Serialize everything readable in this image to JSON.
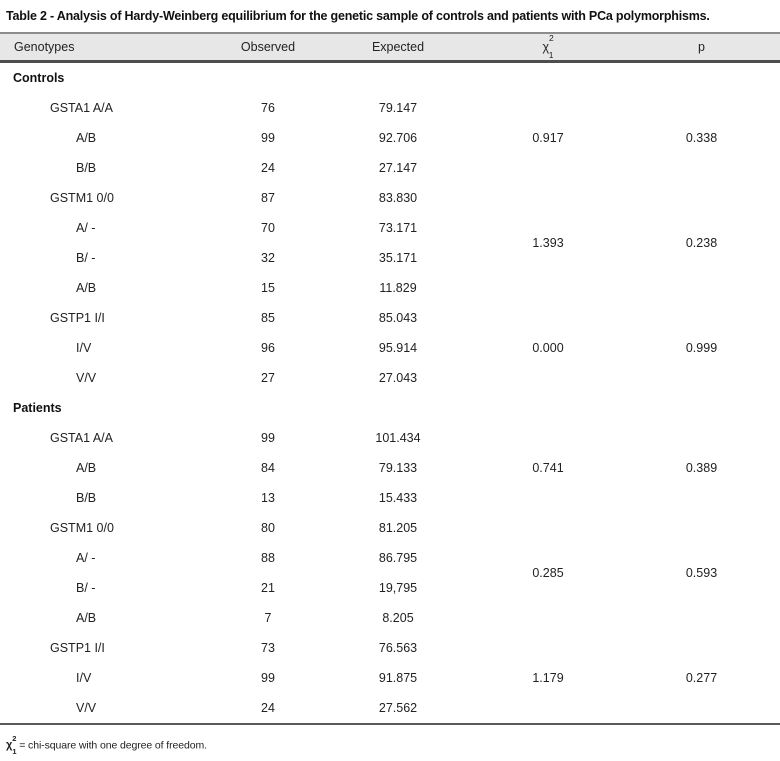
{
  "title": "Table 2 - Analysis of Hardy-Weinberg equilibrium for the genetic sample of controls and patients with PCa polymorphisms.",
  "columns": {
    "genotypes": "Genotypes",
    "observed": "Observed",
    "expected": "Expected",
    "chi_base": "χ",
    "chi_sup": "2",
    "chi_sub": "1",
    "p": "p"
  },
  "colors": {
    "header_bg": "#e7e7e7",
    "rule_top": "#8c8c8c",
    "rule_header_bottom": "#4d4d4d",
    "rule_table_bottom": "#5a5a5a",
    "text": "#222222"
  },
  "sections": [
    {
      "label": "Controls",
      "groups": [
        {
          "chi": "0.917",
          "p": "0.338",
          "rows": [
            {
              "genotype": "GSTA1 A/A",
              "indent": 1,
              "observed": "76",
              "expected": "79.147"
            },
            {
              "genotype": "A/B",
              "indent": 2,
              "observed": "99",
              "expected": "92.706"
            },
            {
              "genotype": "B/B",
              "indent": 2,
              "observed": "24",
              "expected": "27.147"
            }
          ]
        },
        {
          "chi": "1.393",
          "p": "0.238",
          "rows": [
            {
              "genotype": "GSTM1 0/0",
              "indent": 1,
              "observed": "87",
              "expected": "83.830"
            },
            {
              "genotype": "A/ -",
              "indent": 2,
              "observed": "70",
              "expected": "73.171"
            },
            {
              "genotype": "B/ -",
              "indent": 2,
              "observed": "32",
              "expected": "35.171"
            },
            {
              "genotype": "A/B",
              "indent": 2,
              "observed": "15",
              "expected": "11.829"
            }
          ]
        },
        {
          "chi": "0.000",
          "p": "0.999",
          "rows": [
            {
              "genotype": "GSTP1 I/I",
              "indent": 1,
              "observed": "85",
              "expected": "85.043"
            },
            {
              "genotype": "I/V",
              "indent": 2,
              "observed": "96",
              "expected": "95.914"
            },
            {
              "genotype": "V/V",
              "indent": 2,
              "observed": "27",
              "expected": "27.043"
            }
          ]
        }
      ]
    },
    {
      "label": "Patients",
      "groups": [
        {
          "chi": "0.741",
          "p": "0.389",
          "rows": [
            {
              "genotype": "GSTA1 A/A",
              "indent": 1,
              "observed": "99",
              "expected": "101.434"
            },
            {
              "genotype": "A/B",
              "indent": 2,
              "observed": "84",
              "expected": "79.133"
            },
            {
              "genotype": "B/B",
              "indent": 2,
              "observed": "13",
              "expected": "15.433"
            }
          ]
        },
        {
          "chi": "0.285",
          "p": "0.593",
          "rows": [
            {
              "genotype": "GSTM1 0/0",
              "indent": 1,
              "observed": "80",
              "expected": "81.205"
            },
            {
              "genotype": "A/ -",
              "indent": 2,
              "observed": "88",
              "expected": "86.795"
            },
            {
              "genotype": "B/ -",
              "indent": 2,
              "observed": "21",
              "expected": "19,795"
            },
            {
              "genotype": "A/B",
              "indent": 2,
              "observed": "7",
              "expected": "8.205"
            }
          ]
        },
        {
          "chi": "1.179",
          "p": "0.277",
          "rows": [
            {
              "genotype": "GSTP1 I/I",
              "indent": 1,
              "observed": "73",
              "expected": "76.563"
            },
            {
              "genotype": "I/V",
              "indent": 2,
              "observed": "99",
              "expected": "91.875"
            },
            {
              "genotype": "V/V",
              "indent": 2,
              "observed": "24",
              "expected": "27.562"
            }
          ]
        }
      ]
    }
  ],
  "footnote": {
    "symbol_base": "χ",
    "symbol_sup": "2",
    "symbol_sub": "1",
    "text": " = chi-square with one degree of freedom."
  }
}
